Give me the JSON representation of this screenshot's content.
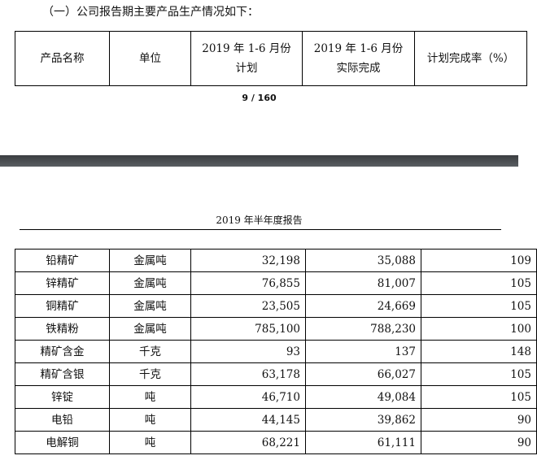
{
  "intro": "（一）公司报告期主要产品生产情况如下：",
  "header": {
    "c1": "产品名称",
    "c2": "单位",
    "c3a": "2019 年 1-6 月份",
    "c3b": "计划",
    "c4a": "2019 年 1-6 月份",
    "c4b": "实际完成",
    "c5": "计划完成率（%）"
  },
  "page_indicator": "9 / 160",
  "page_header": "2019 年半年度报告",
  "rows": [
    [
      "铅精矿",
      "金属吨",
      "32,198",
      "35,088",
      "109"
    ],
    [
      "锌精矿",
      "金属吨",
      "76,855",
      "81,007",
      "105"
    ],
    [
      "铜精矿",
      "金属吨",
      "23,505",
      "24,669",
      "105"
    ],
    [
      "铁精粉",
      "金属吨",
      "785,100",
      "788,230",
      "100"
    ],
    [
      "精矿含金",
      "千克",
      "93",
      "137",
      "148"
    ],
    [
      "精矿含银",
      "千克",
      "63,178",
      "66,027",
      "105"
    ],
    [
      "锌锭",
      "吨",
      "46,710",
      "49,084",
      "105"
    ],
    [
      "电铅",
      "吨",
      "44,145",
      "39,862",
      "90"
    ],
    [
      "电解铜",
      "吨",
      "68,221",
      "61,111",
      "90"
    ]
  ]
}
